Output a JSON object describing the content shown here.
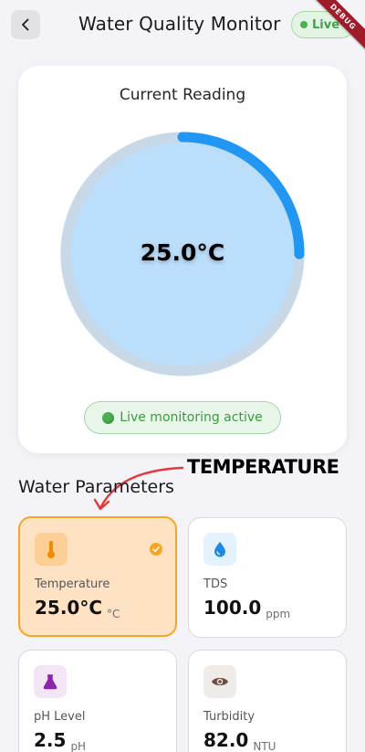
{
  "app_bar": {
    "title": "Water Quality Monitor",
    "live_badge": "Live",
    "debug_banner": "DEBUG"
  },
  "reading_card": {
    "title": "Current Reading",
    "value": "25.0°C",
    "gauge_fraction": 0.25,
    "status": "Live monitoring active",
    "status_icon": "green-circle-icon"
  },
  "annotation": {
    "label": "TEMPERATURE"
  },
  "section": {
    "title": "Water Parameters"
  },
  "parameters": [
    {
      "label": "Temperature",
      "value": "25.0°C",
      "unit": "°C",
      "icon": "thermometer-icon",
      "selected": true,
      "icon_color": "#f08c00"
    },
    {
      "label": "TDS",
      "value": "100.0",
      "unit": "ppm",
      "icon": "water-drop-icon",
      "selected": false,
      "icon_color": "#1e88e5"
    },
    {
      "label": "pH Level",
      "value": "2.5",
      "unit": "pH",
      "icon": "flask-icon",
      "selected": false,
      "icon_color": "#8e24aa"
    },
    {
      "label": "Turbidity",
      "value": "82.0",
      "unit": "NTU",
      "icon": "eye-icon",
      "selected": false,
      "icon_color": "#6d4c41"
    }
  ],
  "colors": {
    "accent_blue": "#2196f3",
    "live_green": "#4caf50",
    "selected_orange": "#f5a623"
  }
}
